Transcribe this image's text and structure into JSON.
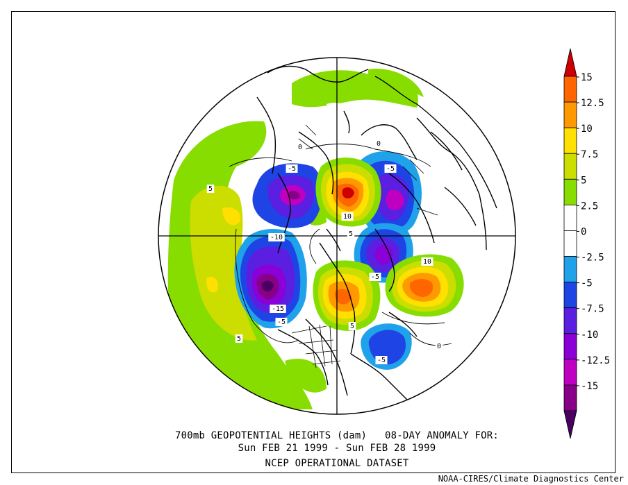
{
  "caption": {
    "line1": "700mb GEOPOTENTIAL HEIGHTS (dam)   08-DAY ANOMALY FOR:",
    "line2": "Sun FEB 21 1999 - Sun FEB 28 1999",
    "line3": "NCEP OPERATIONAL DATASET"
  },
  "credit": "NOAA-CIRES/Climate Diagnostics Center",
  "colorbar": {
    "bins": [
      {
        "color": "#cc0000"
      },
      {
        "color": "#ff6600"
      },
      {
        "color": "#ff9900"
      },
      {
        "color": "#ffe000"
      },
      {
        "color": "#ccdd00"
      },
      {
        "color": "#88dd00"
      },
      {
        "color": "#ffffff"
      },
      {
        "color": "#ffffff"
      },
      {
        "color": "#1fa2ea"
      },
      {
        "color": "#1f44e6"
      },
      {
        "color": "#5a1fe0"
      },
      {
        "color": "#8a00d6"
      },
      {
        "color": "#c000c0"
      },
      {
        "color": "#880088"
      },
      {
        "color": "#4a0060"
      }
    ],
    "labels": [
      "15",
      "12.5",
      "10",
      "7.5",
      "5",
      "2.5",
      "0",
      "-2.5",
      "-5",
      "-7.5",
      "-10",
      "-12.5",
      "-15"
    ]
  },
  "contour_labels": [
    {
      "text": "-5"
    },
    {
      "text": "-5"
    },
    {
      "text": "10"
    },
    {
      "text": "-10"
    },
    {
      "text": "-5"
    },
    {
      "text": "10"
    },
    {
      "text": "-15"
    },
    {
      "text": "-5"
    },
    {
      "text": "5"
    },
    {
      "text": "-5"
    },
    {
      "text": "5"
    },
    {
      "text": "5"
    },
    {
      "text": "0"
    },
    {
      "text": "0"
    },
    {
      "text": "0"
    },
    {
      "text": "5"
    }
  ]
}
